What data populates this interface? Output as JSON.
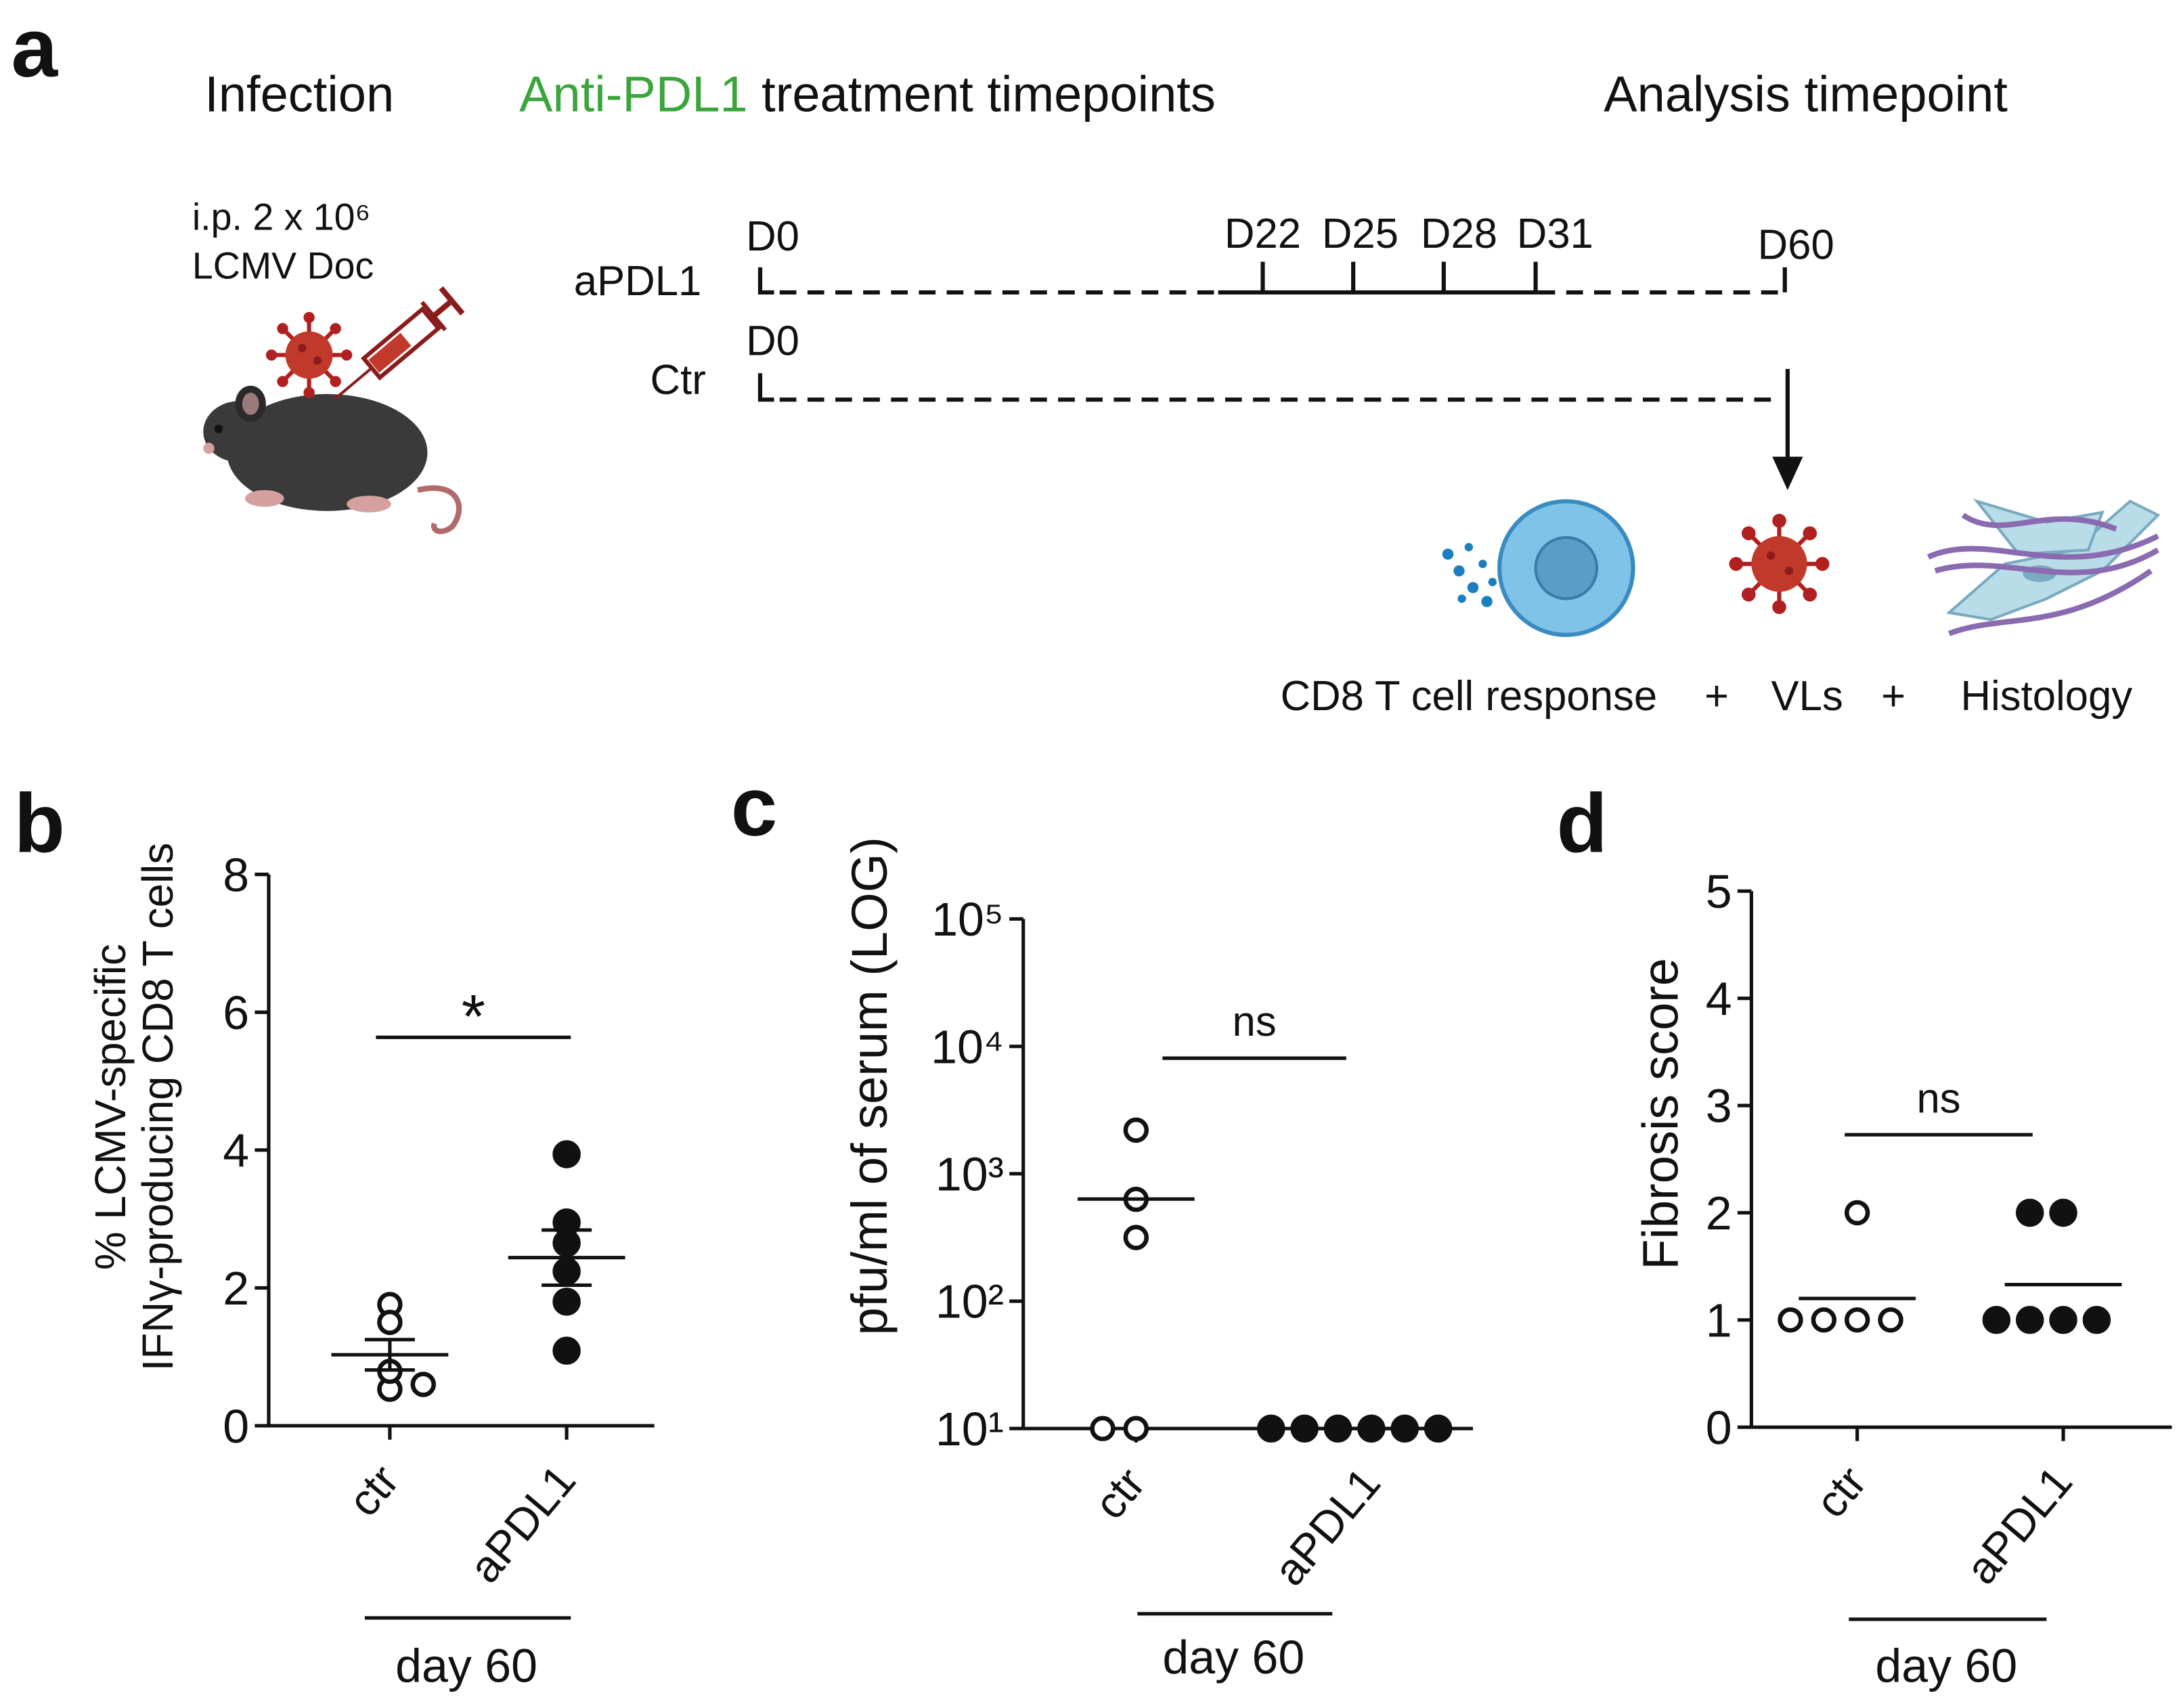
{
  "panel_a": {
    "letter": "a",
    "highlight_color": "#3aa53a",
    "headings": {
      "infection": "Infection",
      "treatment_drug": "Anti-PDL1",
      "treatment_rest": " treatment timepoints",
      "analysis": "Analysis timepoint"
    },
    "infection_dose": "i.p. 2 x 10⁶",
    "infection_virus": "LCMV Doc",
    "rows": [
      {
        "label": "aPDL1",
        "start": "D0",
        "treatments": [
          "D22",
          "D25",
          "D28",
          "D31"
        ],
        "end": "D60"
      },
      {
        "label": "Ctr",
        "start": "D0"
      }
    ],
    "readouts": [
      "CD8 T cell response",
      "+",
      "VLs",
      "+",
      "Histology"
    ]
  },
  "chart_data": [
    {
      "type": "scatter",
      "panel": "b",
      "ylabel": [
        "% LCMV-specific",
        "IFNγ-producing CD8 T cells"
      ],
      "ylim": [
        0,
        8
      ],
      "yticks": [
        0,
        2,
        4,
        6,
        8
      ],
      "categories": [
        "ctr",
        "aPDL1"
      ],
      "groups": [
        {
          "values": [
            1.76,
            1.5,
            0.53,
            0.79,
            0.6
          ],
          "filled": false,
          "mean": 1.03,
          "sem": 0.22
        },
        {
          "values": [
            3.94,
            2.95,
            2.65,
            2.24,
            1.8,
            1.09
          ],
          "filled": true,
          "mean": 2.44,
          "sem": 0.4
        }
      ],
      "significance": "*",
      "group_label": "day 60"
    },
    {
      "type": "scatter",
      "panel": "c",
      "ylabel": [
        "pfu/ml of serum (LOG)"
      ],
      "log": true,
      "ylim": [
        10,
        100000
      ],
      "yticks": [
        {
          "value": 10,
          "label": "10¹"
        },
        {
          "value": 100,
          "label": "10²"
        },
        {
          "value": 1000,
          "label": "10³"
        },
        {
          "value": 10000,
          "label": "10⁴"
        },
        {
          "value": 100000,
          "label": "10⁵"
        }
      ],
      "categories": [
        "ctr",
        "aPDL1"
      ],
      "groups": [
        {
          "values": [
            2200,
            630,
            316,
            10,
            10
          ],
          "filled": false,
          "mean": 633
        },
        {
          "values": [
            10,
            10,
            10,
            10,
            10,
            10
          ],
          "filled": true,
          "mean": 10
        }
      ],
      "significance": "ns",
      "group_label": "day 60"
    },
    {
      "type": "scatter",
      "panel": "d",
      "ylabel": [
        "Fibrosis score"
      ],
      "ylim": [
        0,
        5
      ],
      "yticks": [
        0,
        1,
        2,
        3,
        4,
        5
      ],
      "categories": [
        "ctr",
        "aPDL1"
      ],
      "groups": [
        {
          "values": [
            2,
            1,
            1,
            1,
            1
          ],
          "filled": false,
          "mean": 1.2
        },
        {
          "values": [
            2,
            2,
            1,
            1,
            1,
            1
          ],
          "filled": true,
          "mean": 1.33
        }
      ],
      "significance": "ns",
      "group_label": "day 60"
    }
  ]
}
